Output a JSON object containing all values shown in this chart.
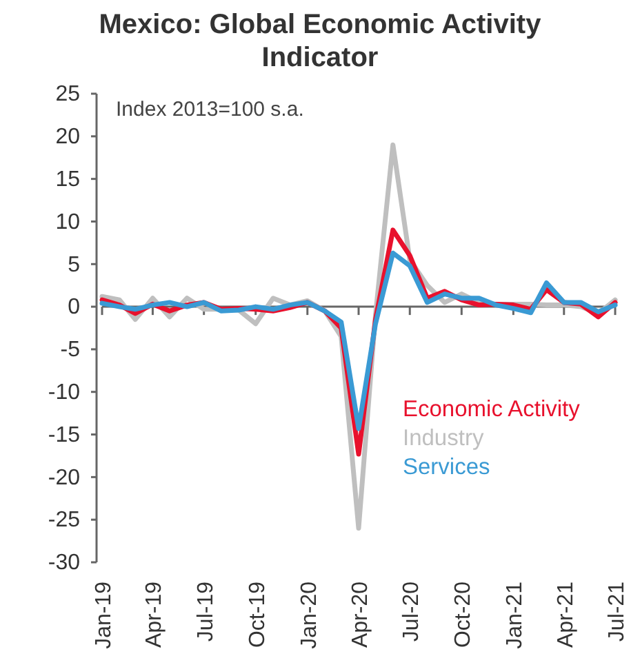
{
  "chart_data": {
    "type": "line",
    "title": "Mexico: Global Economic Activity Indicator",
    "annotations": [
      "Index 2013=100 s.a."
    ],
    "x": [
      "2019-01",
      "2019-02",
      "2019-03",
      "2019-04",
      "2019-05",
      "2019-06",
      "2019-07",
      "2019-08",
      "2019-09",
      "2019-10",
      "2019-11",
      "2019-12",
      "2020-01",
      "2020-02",
      "2020-03",
      "2020-04",
      "2020-05",
      "2020-06",
      "2020-07",
      "2020-08",
      "2020-09",
      "2020-10",
      "2020-11",
      "2020-12",
      "2021-01",
      "2021-02",
      "2021-03",
      "2021-04",
      "2021-05",
      "2021-06",
      "2021-07"
    ],
    "series": [
      {
        "name": "Industry",
        "color": "#bfbfbf",
        "values": [
          1.2,
          0.8,
          -1.5,
          1.0,
          -1.2,
          1.0,
          -0.3,
          -0.3,
          -0.4,
          -2.0,
          1.0,
          0.2,
          0.7,
          -0.5,
          -3.5,
          -26.0,
          -1.0,
          19.0,
          5.5,
          2.5,
          0.5,
          1.5,
          0.5,
          0.3,
          0.3,
          0.3,
          0.2,
          0.2,
          0.0,
          -0.8,
          0.8
        ]
      },
      {
        "name": "Economic Activity",
        "color": "#e8112d",
        "values": [
          0.8,
          0.2,
          -0.8,
          0.3,
          -0.5,
          0.2,
          0.5,
          -0.3,
          -0.2,
          -0.3,
          -0.5,
          -0.1,
          0.5,
          -0.5,
          -2.5,
          -17.3,
          -1.5,
          9.0,
          6.0,
          1.0,
          1.8,
          0.8,
          0.2,
          0.3,
          0.2,
          -0.3,
          2.0,
          0.5,
          0.3,
          -1.2,
          0.5
        ]
      },
      {
        "name": "Services",
        "color": "#3a9ad4",
        "values": [
          0.4,
          0.0,
          -0.3,
          0.2,
          0.5,
          0.0,
          0.5,
          -0.5,
          -0.4,
          0.0,
          -0.3,
          0.2,
          0.5,
          -0.5,
          -1.8,
          -14.3,
          -2.0,
          6.3,
          4.8,
          0.5,
          1.5,
          1.0,
          1.0,
          0.2,
          -0.2,
          -0.7,
          2.8,
          0.5,
          0.5,
          -0.6,
          0.2
        ]
      }
    ],
    "xlim": [
      "2019-01",
      "2021-07"
    ],
    "xticks": [
      {
        "value": "2019-01",
        "label": "Jan-19"
      },
      {
        "value": "2019-04",
        "label": "Apr-19"
      },
      {
        "value": "2019-07",
        "label": "Jul-19"
      },
      {
        "value": "2019-10",
        "label": "Oct-19"
      },
      {
        "value": "2020-01",
        "label": "Jan-20"
      },
      {
        "value": "2020-04",
        "label": "Apr-20"
      },
      {
        "value": "2020-07",
        "label": "Jul-20"
      },
      {
        "value": "2020-10",
        "label": "Oct-20"
      },
      {
        "value": "2021-01",
        "label": "Jan-21"
      },
      {
        "value": "2021-04",
        "label": "Apr-21"
      },
      {
        "value": "2021-07",
        "label": "Jul-21"
      }
    ],
    "ylim": [
      -30,
      25
    ],
    "yticks": [
      -30,
      -25,
      -20,
      -15,
      -10,
      -5,
      0,
      5,
      10,
      15,
      20,
      25
    ],
    "legend": "right"
  }
}
